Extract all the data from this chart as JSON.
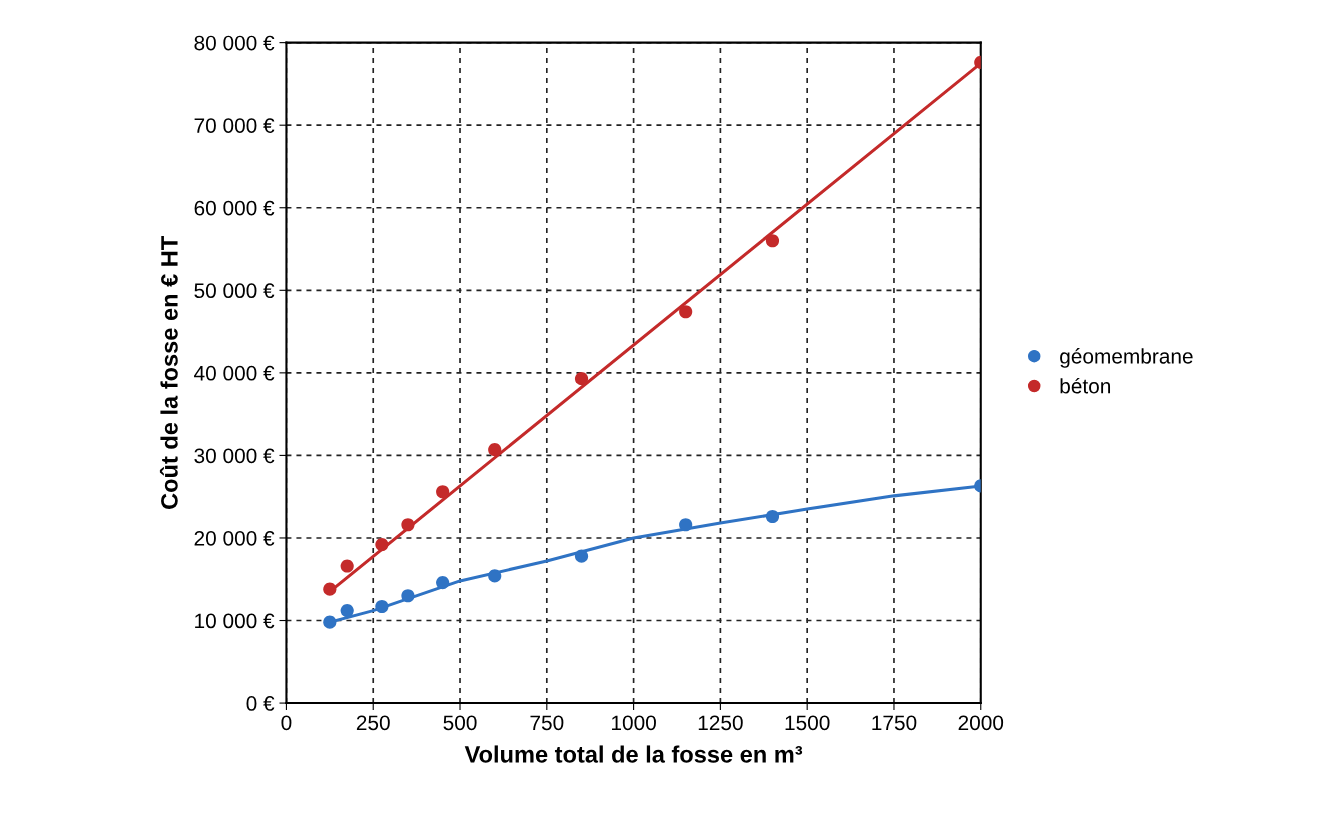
{
  "chart_data": {
    "type": "scatter",
    "xlabel": "Volume total de la fosse en m³",
    "ylabel": "Coût de la fosse en € HT",
    "series": [
      {
        "name": "géomembrane",
        "color": "#2f73c4",
        "x": [
          125,
          175,
          275,
          350,
          450,
          600,
          850,
          1150,
          1400,
          2000
        ],
        "values": [
          9800,
          11200,
          11700,
          13000,
          14600,
          15400,
          17800,
          21600,
          22600,
          26300
        ]
      },
      {
        "name": "béton",
        "color": "#c42a2a",
        "x": [
          125,
          175,
          275,
          350,
          450,
          600,
          850,
          1150,
          1400,
          2000
        ],
        "values": [
          13800,
          16600,
          19200,
          21600,
          25600,
          30700,
          39300,
          47400,
          56000,
          77600
        ]
      },
      {
        "type": "line",
        "marker": "none",
        "color": "#2f73c4",
        "x": [
          125,
          250,
          500,
          750,
          1000,
          1250,
          1500,
          1750,
          2000
        ],
        "values": [
          9800,
          11200,
          14800,
          17200,
          20000,
          21800,
          23500,
          25100,
          26300
        ]
      },
      {
        "type": "line",
        "marker": "none",
        "color": "#c42a2a",
        "x": [
          125,
          2000
        ],
        "values": [
          13500,
          77500
        ]
      }
    ],
    "marker": "circle",
    "xlim": [
      0,
      2000
    ],
    "xticks": [
      0,
      250,
      500,
      750,
      1000,
      1250,
      1500,
      1750,
      2000
    ],
    "ylim": [
      0,
      80000
    ],
    "yticks": [
      {
        "value": 0,
        "label": "0 €"
      },
      {
        "value": 10000,
        "label": "10 000 €"
      },
      {
        "value": 20000,
        "label": "20 000 €"
      },
      {
        "value": 30000,
        "label": "30 000 €"
      },
      {
        "value": 40000,
        "label": "40 000 €"
      },
      {
        "value": 50000,
        "label": "50 000 €"
      },
      {
        "value": 60000,
        "label": "60 000 €"
      },
      {
        "value": 70000,
        "label": "70 000 €"
      },
      {
        "value": 80000,
        "label": "80 000 €"
      }
    ],
    "grid": true,
    "legend": "right"
  }
}
